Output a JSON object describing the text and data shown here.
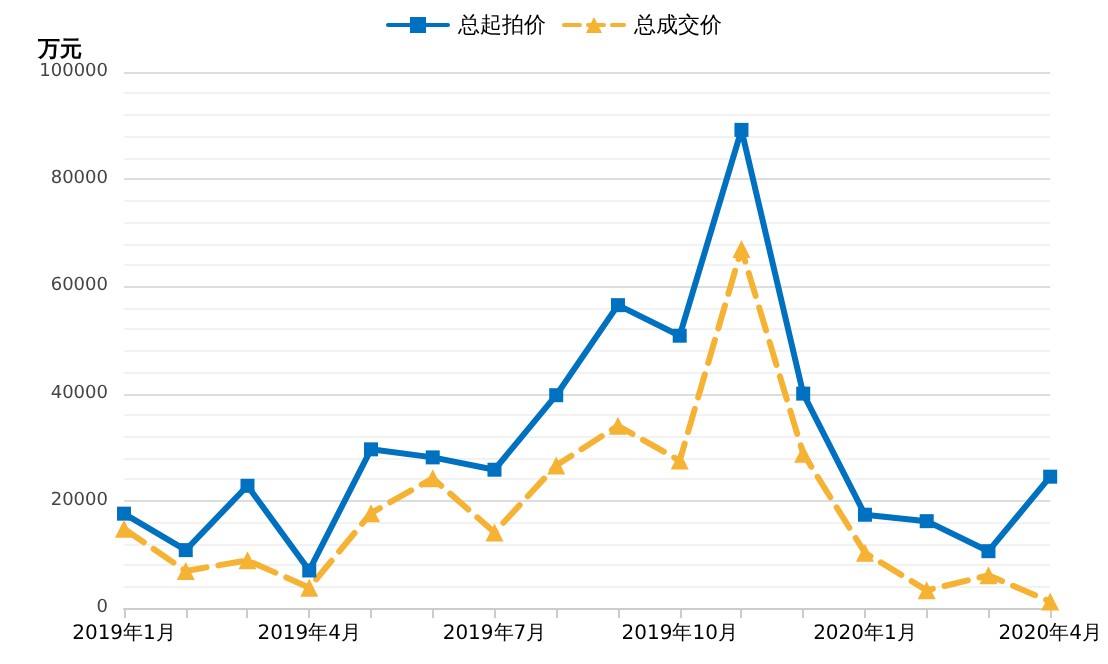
{
  "chart_data": {
    "type": "line",
    "ylabel": "万元",
    "categories": [
      "2019年1月",
      null,
      null,
      "2019年4月",
      null,
      null,
      "2019年7月",
      null,
      null,
      "2019年10月",
      null,
      null,
      "2020年1月",
      null,
      null,
      "2020年4月"
    ],
    "series": [
      {
        "name": "总起拍价",
        "color": "#0070c0",
        "marker": "square",
        "line_style": "solid",
        "values": [
          17600,
          10800,
          22800,
          7000,
          29600,
          28100,
          25800,
          39700,
          56500,
          50800,
          89200,
          40000,
          17400,
          16200,
          10600,
          24500
        ]
      },
      {
        "name": "总成交价",
        "color": "#f5b233",
        "marker": "triangle",
        "line_style": "dashed",
        "values": [
          14800,
          6900,
          8900,
          3800,
          17700,
          24200,
          14100,
          26600,
          34000,
          27500,
          67000,
          28800,
          10300,
          3300,
          6100,
          1200
        ]
      }
    ],
    "ylim": [
      0,
      100000
    ],
    "yticks": [
      0,
      20000,
      40000,
      60000,
      80000,
      100000
    ],
    "grid": "y",
    "legend": "top"
  }
}
